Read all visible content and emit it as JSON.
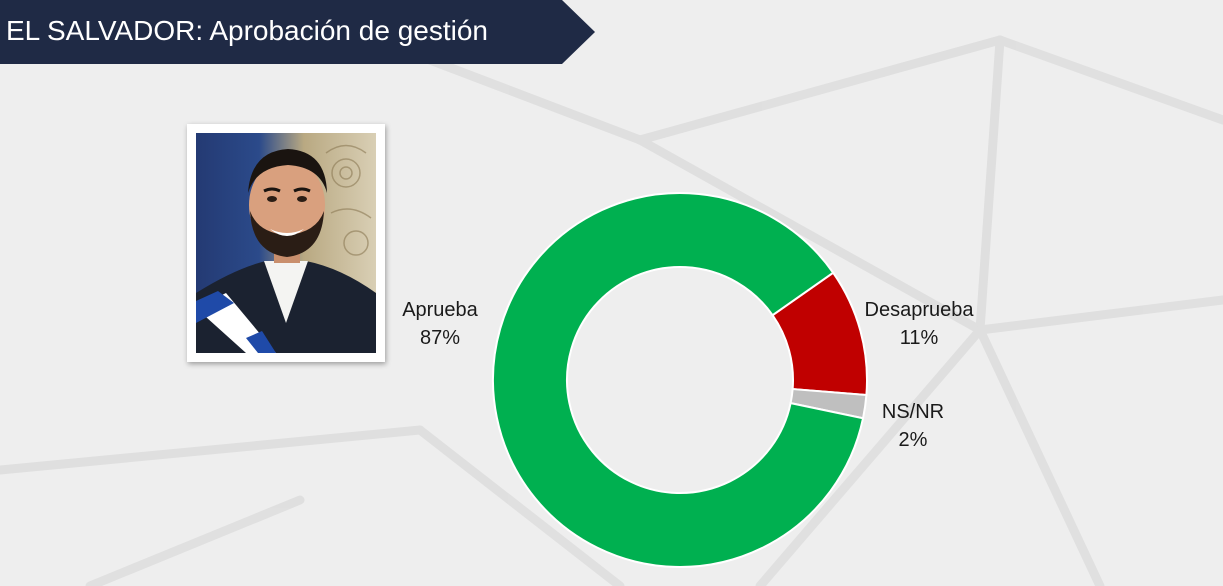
{
  "header": {
    "title": "EL SALVADOR: Aprobación de gestión"
  },
  "photo": {
    "subject": "portrait-photo"
  },
  "colors": {
    "banner": "#1f2a45",
    "aprueba": "#00b050",
    "desaprueba": "#c00000",
    "nsnr": "#bfbfbf"
  },
  "chart_data": {
    "type": "pie",
    "variant": "donut",
    "title": "EL SALVADOR: Aprobación de gestión",
    "categories": [
      "Aprueba",
      "Desaprueba",
      "NS/NR"
    ],
    "values": [
      87,
      11,
      2
    ],
    "value_labels": [
      "87%",
      "11%",
      "2%"
    ],
    "colors": [
      "#00b050",
      "#c00000",
      "#bfbfbf"
    ],
    "legend": "none"
  }
}
